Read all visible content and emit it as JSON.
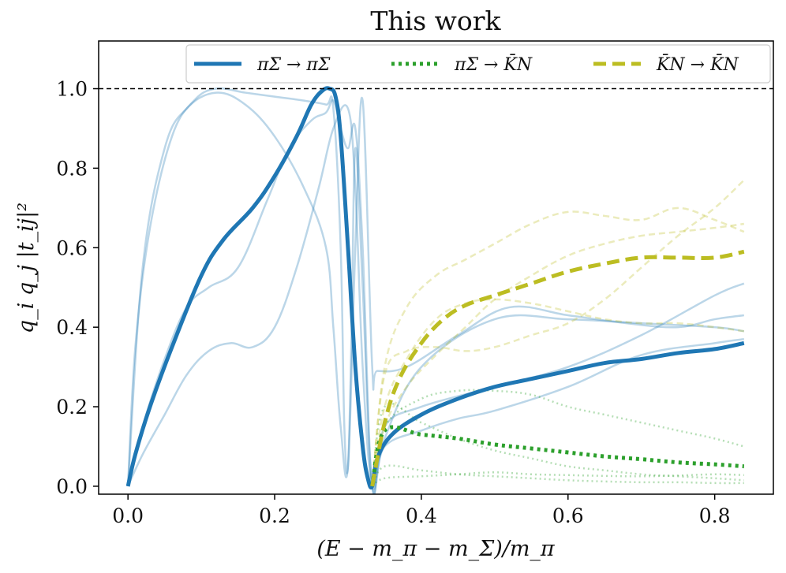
{
  "chart_data": {
    "type": "line",
    "title": "This work",
    "xlabel": "(E − m_π − m_Σ)/m_π",
    "ylabel": "q_i q_j |t_ij|²",
    "xlim": [
      -0.04,
      0.88
    ],
    "ylim": [
      -0.02,
      1.12
    ],
    "xticks": [
      0.0,
      0.2,
      0.4,
      0.6,
      0.8
    ],
    "yticks": [
      0.0,
      0.2,
      0.4,
      0.6,
      0.8,
      1.0
    ],
    "xtick_labels": [
      "0.0",
      "0.2",
      "0.4",
      "0.6",
      "0.8"
    ],
    "ytick_labels": [
      "0.0",
      "0.2",
      "0.4",
      "0.6",
      "0.8",
      "1.0"
    ],
    "reference_line": {
      "y": 1.0,
      "style": "dashed",
      "color": "#000000"
    },
    "legend": {
      "location": "upper-right",
      "entries": [
        {
          "label": "πΣ → πΣ",
          "color": "#1f77b4",
          "style": "solid"
        },
        {
          "label": "πΣ → K̄N",
          "color": "#2ca02c",
          "style": "dotted"
        },
        {
          "label": "K̄N → K̄N",
          "color": "#bcbd22",
          "style": "dashed"
        }
      ]
    },
    "series": [
      {
        "name": "πΣ → πΣ",
        "color": "#1f77b4",
        "style": "solid",
        "width": 5,
        "opacity": 1.0,
        "x": [
          0.0,
          0.01,
          0.03,
          0.06,
          0.1,
          0.13,
          0.17,
          0.2,
          0.23,
          0.25,
          0.265,
          0.275,
          0.283,
          0.29,
          0.3,
          0.31,
          0.32,
          0.327,
          0.333,
          0.34,
          0.36,
          0.4,
          0.45,
          0.5,
          0.55,
          0.6,
          0.65,
          0.7,
          0.75,
          0.8,
          0.84
        ],
        "y": [
          0.0,
          0.08,
          0.2,
          0.35,
          0.53,
          0.62,
          0.7,
          0.78,
          0.88,
          0.96,
          0.995,
          1.0,
          0.98,
          0.88,
          0.6,
          0.3,
          0.1,
          0.02,
          0.0,
          0.07,
          0.13,
          0.18,
          0.22,
          0.25,
          0.27,
          0.29,
          0.31,
          0.32,
          0.335,
          0.345,
          0.36
        ]
      },
      {
        "name": "πΣ → πΣ sample 1",
        "color": "#1f77b4",
        "style": "solid",
        "width": 2.5,
        "opacity": 0.3,
        "x": [
          0.0,
          0.01,
          0.03,
          0.06,
          0.09,
          0.12,
          0.16,
          0.2,
          0.24,
          0.27,
          0.28,
          0.29,
          0.295,
          0.3,
          0.305,
          0.31,
          0.32,
          0.333,
          0.35,
          0.4,
          0.5,
          0.6,
          0.7,
          0.8,
          0.84
        ],
        "y": [
          0.0,
          0.35,
          0.65,
          0.88,
          0.97,
          1.0,
          0.99,
          0.98,
          0.97,
          0.96,
          0.95,
          0.6,
          0.15,
          0.05,
          0.4,
          0.85,
          0.5,
          0.0,
          0.12,
          0.3,
          0.42,
          0.42,
          0.41,
          0.4,
          0.39
        ]
      },
      {
        "name": "πΣ → πΣ sample 2",
        "color": "#1f77b4",
        "style": "solid",
        "width": 2.5,
        "opacity": 0.3,
        "x": [
          0.0,
          0.02,
          0.05,
          0.08,
          0.12,
          0.16,
          0.2,
          0.24,
          0.27,
          0.28,
          0.29,
          0.3,
          0.31,
          0.32,
          0.333,
          0.34,
          0.38,
          0.45,
          0.52,
          0.6,
          0.68,
          0.75,
          0.8,
          0.84
        ],
        "y": [
          0.0,
          0.55,
          0.85,
          0.95,
          0.99,
          0.96,
          0.88,
          0.75,
          0.6,
          0.4,
          0.15,
          0.05,
          0.6,
          0.97,
          0.3,
          0.29,
          0.3,
          0.38,
          0.45,
          0.43,
          0.41,
          0.4,
          0.42,
          0.43
        ]
      },
      {
        "name": "πΣ → πΣ sample 3",
        "color": "#1f77b4",
        "style": "solid",
        "width": 2.5,
        "opacity": 0.3,
        "x": [
          0.0,
          0.02,
          0.05,
          0.08,
          0.11,
          0.15,
          0.19,
          0.22,
          0.25,
          0.27,
          0.28,
          0.29,
          0.3,
          0.31,
          0.32,
          0.333,
          0.35,
          0.4,
          0.5,
          0.6,
          0.7,
          0.8,
          0.84
        ],
        "y": [
          0.0,
          0.15,
          0.32,
          0.45,
          0.5,
          0.55,
          0.72,
          0.85,
          0.92,
          0.94,
          0.97,
          0.9,
          0.85,
          0.9,
          0.6,
          0.0,
          0.15,
          0.2,
          0.25,
          0.3,
          0.38,
          0.48,
          0.51
        ]
      },
      {
        "name": "πΣ → πΣ sample 4",
        "color": "#1f77b4",
        "style": "solid",
        "width": 2.5,
        "opacity": 0.3,
        "x": [
          0.0,
          0.02,
          0.05,
          0.08,
          0.11,
          0.14,
          0.17,
          0.2,
          0.23,
          0.26,
          0.28,
          0.3,
          0.31,
          0.32,
          0.333,
          0.35,
          0.4,
          0.45,
          0.5,
          0.6,
          0.7,
          0.8,
          0.84
        ],
        "y": [
          0.0,
          0.08,
          0.18,
          0.28,
          0.34,
          0.36,
          0.35,
          0.4,
          0.55,
          0.75,
          0.9,
          0.95,
          0.75,
          0.3,
          0.0,
          0.1,
          0.14,
          0.17,
          0.19,
          0.25,
          0.33,
          0.36,
          0.37
        ]
      },
      {
        "name": "πΣ → K̄N",
        "color": "#2ca02c",
        "style": "dotted",
        "width": 5,
        "opacity": 1.0,
        "x": [
          0.333,
          0.35,
          0.4,
          0.45,
          0.5,
          0.55,
          0.6,
          0.65,
          0.7,
          0.75,
          0.8,
          0.84
        ],
        "y": [
          0.0,
          0.14,
          0.13,
          0.12,
          0.105,
          0.095,
          0.085,
          0.075,
          0.068,
          0.06,
          0.055,
          0.05
        ]
      },
      {
        "name": "πΣ → K̄N sample 1",
        "color": "#2ca02c",
        "style": "dotted",
        "width": 2.5,
        "opacity": 0.35,
        "x": [
          0.333,
          0.35,
          0.4,
          0.45,
          0.5,
          0.55,
          0.6,
          0.65,
          0.7,
          0.75,
          0.8,
          0.84
        ],
        "y": [
          0.0,
          0.15,
          0.22,
          0.24,
          0.24,
          0.23,
          0.2,
          0.18,
          0.16,
          0.14,
          0.12,
          0.1
        ]
      },
      {
        "name": "πΣ → K̄N sample 2",
        "color": "#2ca02c",
        "style": "dotted",
        "width": 2.5,
        "opacity": 0.35,
        "x": [
          0.333,
          0.35,
          0.4,
          0.45,
          0.5,
          0.55,
          0.6,
          0.65,
          0.7,
          0.75,
          0.8,
          0.84
        ],
        "y": [
          0.0,
          0.2,
          0.16,
          0.12,
          0.09,
          0.07,
          0.05,
          0.04,
          0.03,
          0.025,
          0.02,
          0.015
        ]
      },
      {
        "name": "πΣ → K̄N sample 3",
        "color": "#2ca02c",
        "style": "dotted",
        "width": 2.5,
        "opacity": 0.35,
        "x": [
          0.333,
          0.35,
          0.4,
          0.45,
          0.5,
          0.55,
          0.6,
          0.65,
          0.7,
          0.75,
          0.8,
          0.84
        ],
        "y": [
          0.0,
          0.02,
          0.025,
          0.03,
          0.035,
          0.03,
          0.028,
          0.026,
          0.025,
          0.027,
          0.03,
          0.028
        ]
      },
      {
        "name": "πΣ → K̄N sample 4",
        "color": "#2ca02c",
        "style": "dotted",
        "width": 2.5,
        "opacity": 0.35,
        "x": [
          0.333,
          0.35,
          0.4,
          0.45,
          0.5,
          0.55,
          0.6,
          0.65,
          0.7,
          0.75,
          0.8,
          0.84
        ],
        "y": [
          0.0,
          0.05,
          0.04,
          0.03,
          0.025,
          0.02,
          0.015,
          0.012,
          0.01,
          0.01,
          0.008,
          0.008
        ]
      },
      {
        "name": "K̄N → K̄N",
        "color": "#bcbd22",
        "style": "dashed",
        "width": 5,
        "opacity": 1.0,
        "x": [
          0.333,
          0.35,
          0.37,
          0.4,
          0.43,
          0.46,
          0.5,
          0.55,
          0.6,
          0.65,
          0.7,
          0.75,
          0.8,
          0.84
        ],
        "y": [
          0.0,
          0.16,
          0.27,
          0.36,
          0.42,
          0.455,
          0.48,
          0.51,
          0.54,
          0.56,
          0.575,
          0.575,
          0.575,
          0.59
        ]
      },
      {
        "name": "K̄N → K̄N sample 1",
        "color": "#bcbd22",
        "style": "dashed",
        "width": 2.5,
        "opacity": 0.3,
        "x": [
          0.333,
          0.35,
          0.38,
          0.42,
          0.46,
          0.5,
          0.55,
          0.6,
          0.65,
          0.7,
          0.75,
          0.8,
          0.84
        ],
        "y": [
          0.0,
          0.3,
          0.45,
          0.53,
          0.57,
          0.61,
          0.66,
          0.69,
          0.68,
          0.67,
          0.7,
          0.67,
          0.64
        ]
      },
      {
        "name": "K̄N → K̄N sample 2",
        "color": "#bcbd22",
        "style": "dashed",
        "width": 2.5,
        "opacity": 0.3,
        "x": [
          0.333,
          0.35,
          0.38,
          0.42,
          0.46,
          0.5,
          0.55,
          0.6,
          0.65,
          0.7,
          0.75,
          0.8,
          0.84
        ],
        "y": [
          0.0,
          0.28,
          0.34,
          0.35,
          0.34,
          0.35,
          0.38,
          0.41,
          0.47,
          0.55,
          0.63,
          0.7,
          0.77
        ]
      },
      {
        "name": "K̄N → K̄N sample 3",
        "color": "#bcbd22",
        "style": "dashed",
        "width": 2.5,
        "opacity": 0.3,
        "x": [
          0.333,
          0.35,
          0.38,
          0.42,
          0.46,
          0.5,
          0.55,
          0.6,
          0.65,
          0.7,
          0.75,
          0.8,
          0.84
        ],
        "y": [
          0.0,
          0.2,
          0.32,
          0.42,
          0.46,
          0.47,
          0.46,
          0.44,
          0.42,
          0.41,
          0.41,
          0.4,
          0.39
        ]
      },
      {
        "name": "K̄N → K̄N sample 4",
        "color": "#bcbd22",
        "style": "dashed",
        "width": 2.5,
        "opacity": 0.3,
        "x": [
          0.333,
          0.35,
          0.38,
          0.42,
          0.46,
          0.5,
          0.55,
          0.6,
          0.65,
          0.7,
          0.75,
          0.8,
          0.84
        ],
        "y": [
          0.0,
          0.15,
          0.25,
          0.33,
          0.4,
          0.47,
          0.53,
          0.58,
          0.61,
          0.63,
          0.64,
          0.65,
          0.66
        ]
      }
    ]
  }
}
